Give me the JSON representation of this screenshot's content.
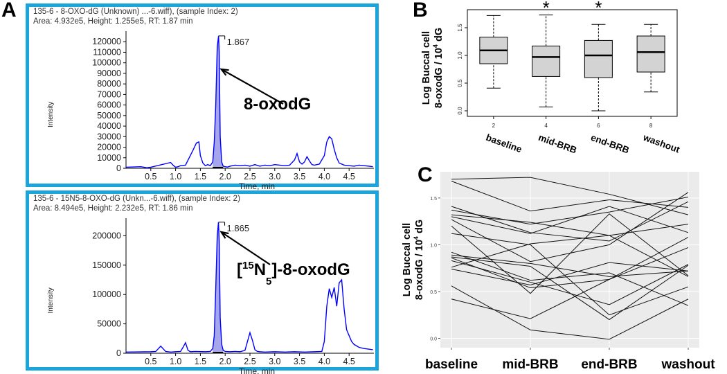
{
  "colors": {
    "frame": "#1aa5dc",
    "trace": "#0000ff",
    "peak_fill": "#0000cc",
    "box_fill": "#d3d3d3",
    "panel_c_bg": "#ebebeb"
  },
  "panel_labels": {
    "a": "A",
    "b": "B",
    "c": "C"
  },
  "chart_data": [
    {
      "type": "line",
      "id": "chromatogram-top",
      "header_line1": "135-6 - 8-OXO-dG (Unknown) ...-6.wiff), (sample Index: 2)",
      "header_line2": "Area: 4.932e5, Height: 1.255e5, RT: 1.87 min",
      "ylabel": "Intensity",
      "xlabel": "Time, min",
      "xlim": [
        0,
        5.0
      ],
      "ylim": [
        0,
        130000
      ],
      "xticks": [
        "0.5",
        "1.0",
        "1.5",
        "2.0",
        "2.5",
        "3.0",
        "3.5",
        "4.0",
        "4.5"
      ],
      "yticks": [
        "0",
        "10000",
        "20000",
        "30000",
        "40000",
        "50000",
        "60000",
        "70000",
        "80000",
        "90000",
        "100000",
        "110000",
        "120000"
      ],
      "peak_label": "1.867",
      "annotation": "8-oxodG",
      "peak_rt": 1.867,
      "peak_height": 125500,
      "x": [
        0.0,
        0.3,
        0.42,
        0.5,
        0.9,
        0.95,
        1.0,
        1.05,
        1.1,
        1.2,
        1.35,
        1.42,
        1.47,
        1.5,
        1.55,
        1.6,
        1.65,
        1.7,
        1.75,
        1.78,
        1.81,
        1.84,
        1.867,
        1.88,
        1.9,
        1.93,
        1.96,
        2.0,
        2.05,
        2.1,
        2.2,
        2.3,
        2.4,
        2.5,
        2.6,
        2.7,
        2.8,
        2.9,
        3.0,
        3.1,
        3.2,
        3.3,
        3.4,
        3.45,
        3.5,
        3.55,
        3.6,
        3.65,
        3.7,
        3.75,
        3.8,
        3.9,
        4.0,
        4.05,
        4.1,
        4.15,
        4.2,
        4.25,
        4.3,
        4.4,
        4.5,
        4.6,
        4.7,
        4.8,
        4.9,
        4.98
      ],
      "y": [
        1000,
        1500,
        500,
        1000,
        5500,
        3000,
        1000,
        1500,
        2500,
        3000,
        17000,
        24000,
        25000,
        12000,
        5000,
        2500,
        3500,
        2500,
        6000,
        25000,
        60000,
        115000,
        125500,
        110000,
        30000,
        6000,
        2000,
        1500,
        1200,
        2000,
        3000,
        2500,
        3000,
        2000,
        3500,
        2000,
        3000,
        2500,
        3500,
        3000,
        2500,
        3000,
        8000,
        14000,
        6000,
        4000,
        6000,
        11000,
        7000,
        3500,
        3000,
        4000,
        12000,
        25000,
        30000,
        28000,
        18000,
        10000,
        5000,
        3000,
        2500,
        2000,
        3000,
        2500,
        2000,
        1500
      ]
    },
    {
      "type": "line",
      "id": "chromatogram-bottom",
      "header_line1": "135-6 - 15N5-8-OXO-dG (Unkn...-6.wiff), (sample Index: 2)",
      "header_line2": "Area: 8.494e5, Height: 2.232e5, RT: 1.86 min",
      "ylabel": "Intensity",
      "xlabel": "Time, min",
      "xlim": [
        0,
        5.0
      ],
      "ylim": [
        0,
        230000
      ],
      "xticks": [
        "0.5",
        "1.0",
        "1.5",
        "2.0",
        "2.5",
        "3.0",
        "3.5",
        "4.0",
        "4.5"
      ],
      "yticks": [
        "0",
        "50000",
        "100000",
        "150000",
        "200000"
      ],
      "peak_label": "1.865",
      "annotation_prefix": "[",
      "annotation_sup": "15",
      "annotation_mid": "N",
      "annotation_sub": "5",
      "annotation_suffix": "]-8-oxodG",
      "peak_rt": 1.865,
      "peak_height": 223200,
      "x": [
        0.0,
        0.5,
        0.6,
        0.7,
        0.8,
        0.9,
        1.0,
        1.1,
        1.15,
        1.2,
        1.25,
        1.3,
        1.4,
        1.6,
        1.7,
        1.75,
        1.78,
        1.81,
        1.84,
        1.865,
        1.88,
        1.9,
        1.93,
        1.96,
        2.0,
        2.1,
        2.2,
        2.3,
        2.4,
        2.45,
        2.5,
        2.55,
        2.6,
        2.65,
        2.7,
        2.8,
        3.0,
        3.2,
        3.4,
        3.6,
        3.8,
        3.95,
        4.0,
        4.05,
        4.1,
        4.15,
        4.2,
        4.25,
        4.3,
        4.35,
        4.4,
        4.45,
        4.5,
        4.55,
        4.6,
        4.7,
        4.8,
        4.98
      ],
      "y": [
        2000,
        2500,
        3000,
        12000,
        3000,
        2000,
        2500,
        3000,
        10000,
        18000,
        5000,
        2500,
        3000,
        2500,
        3000,
        8000,
        30000,
        110000,
        200000,
        223200,
        190000,
        60000,
        15000,
        5000,
        3000,
        2500,
        3000,
        2500,
        5000,
        20000,
        35000,
        22000,
        6000,
        3000,
        2500,
        2000,
        2500,
        2000,
        2500,
        2000,
        2500,
        3000,
        20000,
        80000,
        110000,
        95000,
        112000,
        80000,
        120000,
        125000,
        75000,
        40000,
        30000,
        20000,
        15000,
        10000,
        8000,
        6000
      ]
    },
    {
      "type": "box",
      "id": "boxplot",
      "ylabel_line1": "Log Buccal cell",
      "ylabel_line2_pre": "8-oxodG / 10",
      "ylabel_line2_sup": "4",
      "ylabel_line2_post": " dG",
      "ylim": [
        0.0,
        1.75
      ],
      "yticks": [
        "0.0",
        "0.5",
        "1.0",
        "1.5"
      ],
      "ticks_numeric": [
        "2",
        "4",
        "6",
        "8"
      ],
      "categories": [
        "baseline",
        "mid-BRB",
        "end-BRB",
        "washout"
      ],
      "significance": [
        "",
        "*",
        "*",
        ""
      ],
      "whisker_low": [
        0.41,
        0.07,
        0.0,
        0.34
      ],
      "q1": [
        0.85,
        0.62,
        0.6,
        0.7
      ],
      "median": [
        1.09,
        0.97,
        1.0,
        1.06
      ],
      "q3": [
        1.33,
        1.17,
        1.27,
        1.35
      ],
      "whisker_high": [
        1.72,
        1.73,
        1.56,
        1.56
      ]
    },
    {
      "type": "line",
      "id": "spaghetti",
      "ylabel_line1": "Log Buccal cell",
      "ylabel_line2_pre": "8-oxodG / 10",
      "ylabel_line2_sup": "4",
      "ylabel_line2_post": " dG",
      "ylim": [
        -0.1,
        1.78
      ],
      "yticks": [
        "0.0",
        "0.5",
        "1.0",
        "1.5"
      ],
      "categories": [
        "baseline",
        "mid-BRB",
        "end-BRB",
        "washout"
      ],
      "series": [
        {
          "name": "s1",
          "values": [
            1.7,
            1.72,
            1.54,
            1.32
          ]
        },
        {
          "name": "s2",
          "values": [
            1.68,
            1.36,
            1.48,
            1.4
          ]
        },
        {
          "name": "s3",
          "values": [
            1.41,
            1.13,
            1.04,
            1.46
          ]
        },
        {
          "name": "s4",
          "values": [
            1.37,
            1.22,
            1.35,
            1.51
          ]
        },
        {
          "name": "s5",
          "values": [
            1.32,
            1.24,
            1.1,
            1.22
          ]
        },
        {
          "name": "s6",
          "values": [
            1.3,
            1.12,
            1.41,
            1.13
          ]
        },
        {
          "name": "s7",
          "values": [
            1.27,
            0.82,
            1.0,
            1.56
          ]
        },
        {
          "name": "s8",
          "values": [
            1.2,
            0.48,
            1.33,
            0.67
          ]
        },
        {
          "name": "s9",
          "values": [
            1.12,
            1.0,
            0.25,
            0.55
          ]
        },
        {
          "name": "s10",
          "values": [
            0.89,
            0.8,
            0.66,
            0.72
          ]
        },
        {
          "name": "s11",
          "values": [
            0.87,
            0.77,
            0.2,
            0.78
          ]
        },
        {
          "name": "s12",
          "values": [
            0.83,
            0.6,
            0.36,
            0.79
          ]
        },
        {
          "name": "s13",
          "values": [
            0.76,
            1.01,
            1.1,
            0.66
          ]
        },
        {
          "name": "s14",
          "values": [
            0.74,
            0.57,
            0.81,
            0.72
          ]
        },
        {
          "name": "s15",
          "values": [
            0.56,
            0.09,
            -0.01,
            0.42
          ]
        },
        {
          "name": "s16",
          "values": [
            0.42,
            0.21,
            0.63,
            1.08
          ]
        },
        {
          "name": "s17",
          "values": [
            0.86,
            0.54,
            0.63,
            0.97
          ]
        },
        {
          "name": "s18",
          "values": [
            0.92,
            0.62,
            0.7,
            0.35
          ]
        }
      ]
    }
  ]
}
